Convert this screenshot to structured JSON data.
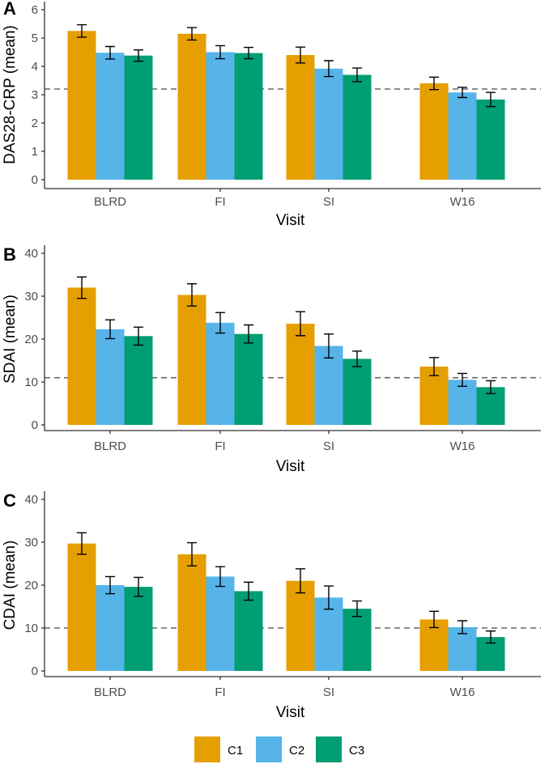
{
  "chart_data": [
    {
      "type": "bar",
      "panel": "A",
      "categories": [
        "BLRD",
        "FI",
        "SI",
        "W16"
      ],
      "series": [
        {
          "name": "C1",
          "values": [
            5.25,
            5.15,
            4.4,
            3.4
          ],
          "errors": [
            0.22,
            0.22,
            0.28,
            0.22
          ]
        },
        {
          "name": "C2",
          "values": [
            4.48,
            4.5,
            3.92,
            3.08
          ],
          "errors": [
            0.22,
            0.23,
            0.28,
            0.18
          ]
        },
        {
          "name": "C3",
          "values": [
            4.38,
            4.47,
            3.7,
            2.83
          ],
          "errors": [
            0.2,
            0.2,
            0.24,
            0.25
          ]
        }
      ],
      "reference_line": 3.2,
      "yticks": [
        "0",
        "1",
        "2",
        "3",
        "4",
        "5",
        "6"
      ],
      "ylim": [
        0,
        6
      ],
      "xlabel": "Visit",
      "ylabel": "DAS28-CRP (mean)"
    },
    {
      "type": "bar",
      "panel": "B",
      "categories": [
        "BLRD",
        "FI",
        "SI",
        "W16"
      ],
      "series": [
        {
          "name": "C1",
          "values": [
            32.0,
            30.3,
            23.6,
            13.6
          ],
          "errors": [
            2.5,
            2.6,
            2.8,
            2.1
          ]
        },
        {
          "name": "C2",
          "values": [
            22.3,
            23.8,
            18.4,
            10.5
          ],
          "errors": [
            2.2,
            2.4,
            2.8,
            1.5
          ]
        },
        {
          "name": "C3",
          "values": [
            20.7,
            21.2,
            15.4,
            8.8
          ],
          "errors": [
            2.1,
            2.1,
            1.8,
            1.5
          ]
        }
      ],
      "reference_line": 11,
      "yticks": [
        "0",
        "10",
        "20",
        "30",
        "40"
      ],
      "ylim": [
        0,
        40
      ],
      "xlabel": "Visit",
      "ylabel": "SDAI (mean)"
    },
    {
      "type": "bar",
      "panel": "C",
      "categories": [
        "BLRD",
        "FI",
        "SI",
        "W16"
      ],
      "series": [
        {
          "name": "C1",
          "values": [
            29.7,
            27.2,
            21.0,
            12.0
          ],
          "errors": [
            2.5,
            2.7,
            2.8,
            1.9
          ]
        },
        {
          "name": "C2",
          "values": [
            20.0,
            22.0,
            17.1,
            10.2
          ],
          "errors": [
            2.0,
            2.3,
            2.7,
            1.5
          ]
        },
        {
          "name": "C3",
          "values": [
            19.6,
            18.6,
            14.5,
            7.9
          ],
          "errors": [
            2.2,
            2.1,
            1.8,
            1.4
          ]
        }
      ],
      "reference_line": 10,
      "yticks": [
        "0",
        "10",
        "20",
        "30",
        "40"
      ],
      "ylim": [
        0,
        40
      ],
      "xlabel": "Visit",
      "ylabel": "CDAI (mean)"
    }
  ],
  "legend": [
    {
      "name": "C1",
      "color": "#E69F00"
    },
    {
      "name": "C2",
      "color": "#56B4E9"
    },
    {
      "name": "C3",
      "color": "#009E73"
    }
  ],
  "colors": {
    "C1": "#E69F00",
    "C2": "#56B4E9",
    "C3": "#009E73",
    "axis": "#333333",
    "reference_line": "#666666",
    "error_bar": "#000000"
  }
}
